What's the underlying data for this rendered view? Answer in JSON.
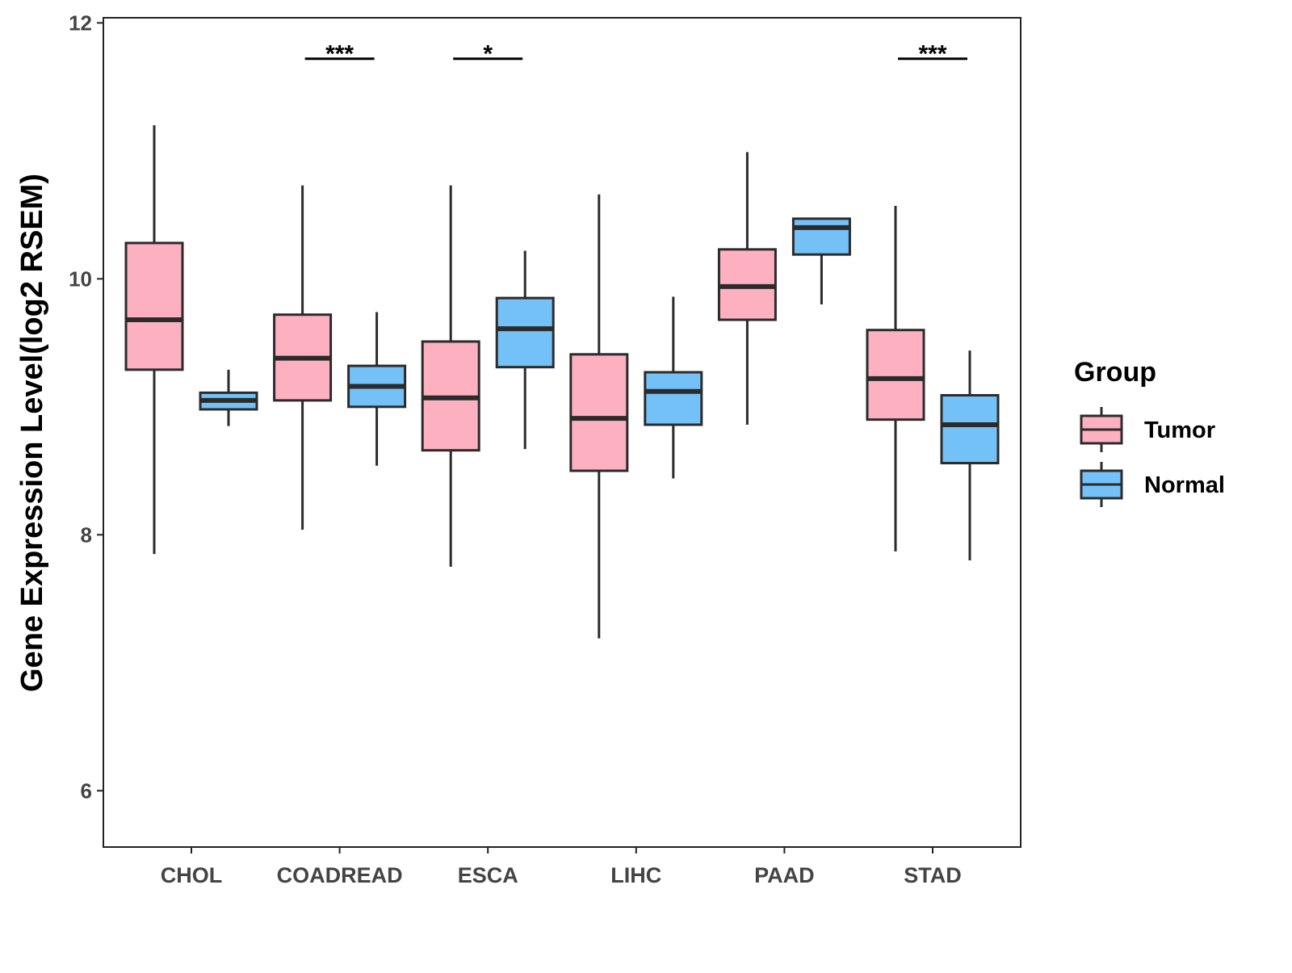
{
  "chart_data": {
    "type": "boxplot",
    "title": "",
    "xlabel": "",
    "ylabel": "Gene Expression Level(log2 RSEM)",
    "ylim": [
      5.56,
      12.04
    ],
    "yticks": [
      6,
      8,
      10,
      12
    ],
    "grid": false,
    "categories": [
      "CHOL",
      "COADREAD",
      "ESCA",
      "LIHC",
      "PAAD",
      "STAD"
    ],
    "legend": {
      "title": "Group",
      "placement": "right",
      "entries": [
        "Tumor",
        "Normal"
      ]
    },
    "colors": {
      "Tumor": "#FDB0C0",
      "Normal": "#74C1F8",
      "outline": "#2b2b2b"
    },
    "series": [
      {
        "name": "Tumor",
        "boxes": [
          {
            "min": 7.85,
            "q1": 9.29,
            "median": 9.68,
            "q3": 10.28,
            "max": 11.2
          },
          {
            "min": 8.04,
            "q1": 9.05,
            "median": 9.38,
            "q3": 9.72,
            "max": 10.73
          },
          {
            "min": 7.75,
            "q1": 8.66,
            "median": 9.07,
            "q3": 9.51,
            "max": 10.73
          },
          {
            "min": 7.19,
            "q1": 8.5,
            "median": 8.91,
            "q3": 9.41,
            "max": 10.66
          },
          {
            "min": 8.86,
            "q1": 9.68,
            "median": 9.94,
            "q3": 10.23,
            "max": 10.99
          },
          {
            "min": 7.87,
            "q1": 8.9,
            "median": 9.22,
            "q3": 9.6,
            "max": 10.57
          }
        ]
      },
      {
        "name": "Normal",
        "boxes": [
          {
            "min": 8.85,
            "q1": 8.98,
            "median": 9.05,
            "q3": 9.11,
            "max": 9.29
          },
          {
            "min": 8.54,
            "q1": 9.0,
            "median": 9.16,
            "q3": 9.32,
            "max": 9.74
          },
          {
            "min": 8.67,
            "q1": 9.31,
            "median": 9.61,
            "q3": 9.85,
            "max": 10.22
          },
          {
            "min": 8.44,
            "q1": 8.86,
            "median": 9.12,
            "q3": 9.27,
            "max": 9.86
          },
          {
            "min": 9.8,
            "q1": 10.19,
            "median": 10.4,
            "q3": 10.47,
            "max": 10.47
          },
          {
            "min": 7.8,
            "q1": 8.56,
            "median": 8.86,
            "q3": 9.09,
            "max": 9.44
          }
        ]
      }
    ],
    "annotations": [
      {
        "category": "COADREAD",
        "label": "***",
        "y": 11.72
      },
      {
        "category": "ESCA",
        "label": "*",
        "y": 11.72
      },
      {
        "category": "STAD",
        "label": "***",
        "y": 11.72
      }
    ]
  }
}
